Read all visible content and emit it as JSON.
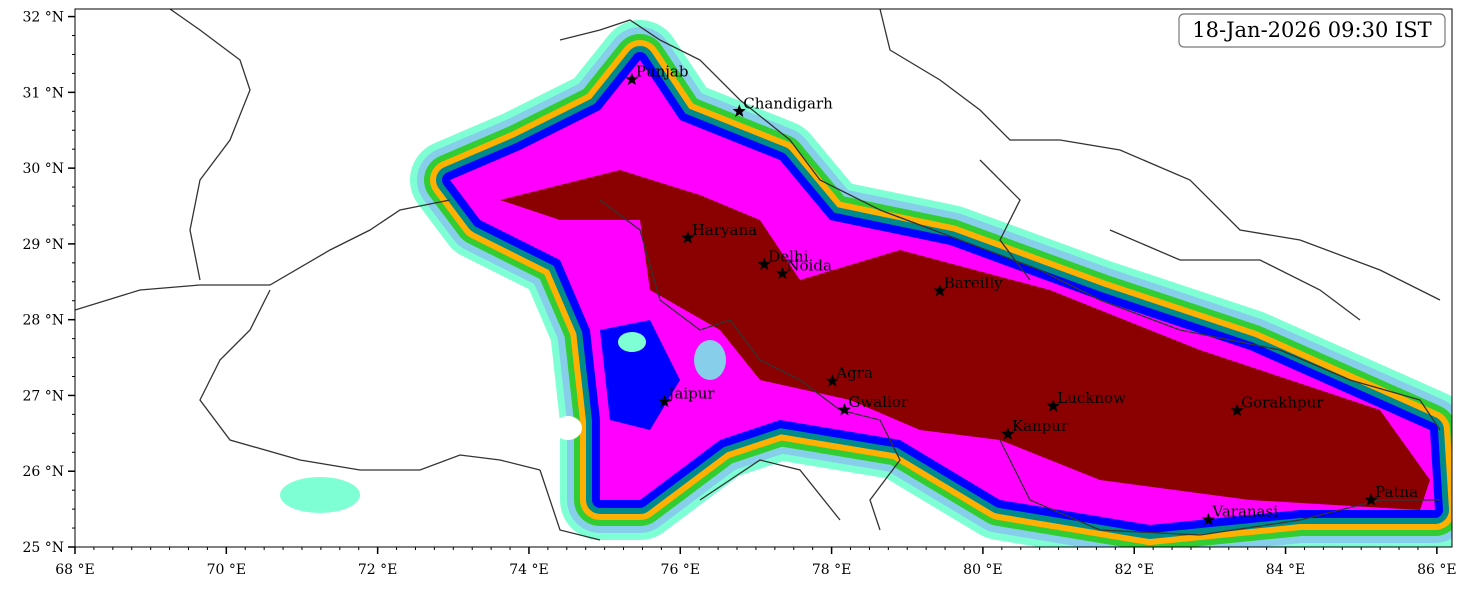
{
  "map": {
    "timestamp": "18-Jan-2026 09:30 IST",
    "lon_extent": [
      68,
      86.2
    ],
    "lat_extent": [
      25,
      32.1
    ],
    "lon_ticks": [
      {
        "value": 68,
        "label": "68 °E"
      },
      {
        "value": 70,
        "label": "70 °E"
      },
      {
        "value": 72,
        "label": "72 °E"
      },
      {
        "value": 74,
        "label": "74 °E"
      },
      {
        "value": 76,
        "label": "76 °E"
      },
      {
        "value": 78,
        "label": "78 °E"
      },
      {
        "value": 80,
        "label": "80 °E"
      },
      {
        "value": 82,
        "label": "82 °E"
      },
      {
        "value": 84,
        "label": "84 °E"
      },
      {
        "value": 86,
        "label": "86 °E"
      }
    ],
    "lat_ticks": [
      {
        "value": 25,
        "label": "25 °N"
      },
      {
        "value": 26,
        "label": "26 °N"
      },
      {
        "value": 27,
        "label": "27 °N"
      },
      {
        "value": 28,
        "label": "28 °N"
      },
      {
        "value": 29,
        "label": "29 °N"
      },
      {
        "value": 30,
        "label": "30 °N"
      },
      {
        "value": 31,
        "label": "31 °N"
      },
      {
        "value": 32,
        "label": "32 °N"
      }
    ],
    "cities": [
      {
        "name": "Punjab",
        "lon": 75.36,
        "lat": 31.17
      },
      {
        "name": "Chandigarh",
        "lon": 76.78,
        "lat": 30.75
      },
      {
        "name": "Haryana",
        "lon": 76.1,
        "lat": 29.08
      },
      {
        "name": "Delhi",
        "lon": 77.11,
        "lat": 28.73
      },
      {
        "name": "Noida",
        "lon": 77.35,
        "lat": 28.61
      },
      {
        "name": "Bareilly",
        "lon": 79.43,
        "lat": 28.38
      },
      {
        "name": "Agra",
        "lon": 78.01,
        "lat": 27.19
      },
      {
        "name": "Jaipur",
        "lon": 75.79,
        "lat": 26.92
      },
      {
        "name": "Gwalior",
        "lon": 78.17,
        "lat": 26.81
      },
      {
        "name": "Lucknow",
        "lon": 80.93,
        "lat": 26.86
      },
      {
        "name": "Kanpur",
        "lon": 80.33,
        "lat": 26.49
      },
      {
        "name": "Gorakhpur",
        "lon": 83.36,
        "lat": 26.8
      },
      {
        "name": "Varanasi",
        "lon": 82.98,
        "lat": 25.36
      },
      {
        "name": "Patna",
        "lon": 85.13,
        "lat": 25.62
      }
    ]
  }
}
